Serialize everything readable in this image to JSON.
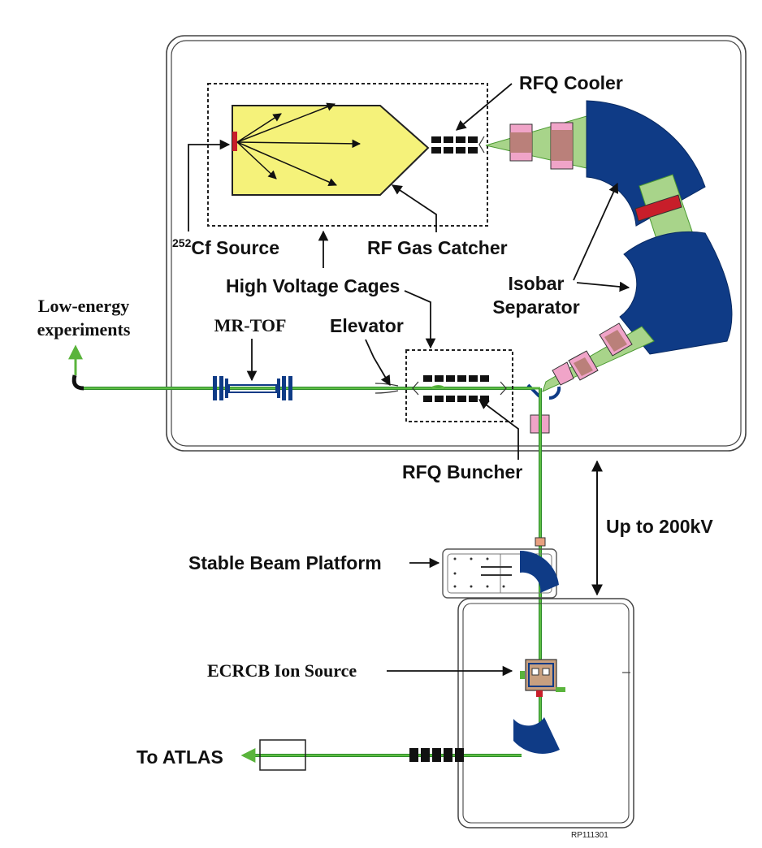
{
  "labels": {
    "rfq_cooler": "RFQ Cooler",
    "cf_sup": "252",
    "cf_source": "Cf Source",
    "rf_gas_catcher": "RF Gas Catcher",
    "high_voltage_cages": "High Voltage Cages",
    "isobar": "Isobar",
    "separator": "Separator",
    "low_energy": "Low-energy",
    "experiments": "experiments",
    "mr_tof": "MR-TOF",
    "elevator": "Elevator",
    "rfq_buncher": "RFQ Buncher",
    "up_to": "Up to 200kV",
    "stable_beam_platform": "Stable Beam Platform",
    "ecrcb": "ECRCB Ion Source",
    "to_atlas": "To ATLAS",
    "figure_id": "RP111301"
  },
  "colors": {
    "beam": "#5ab43c",
    "beam_cone": "#a8d48a",
    "magnet": "#0f3b86",
    "catcher": "#f5f27a",
    "rfq": "#111111",
    "quad": "#f0a4c8",
    "quad_overlap": "#b07a6c",
    "source_marker": "#c81e2a",
    "cage_border": "#333333",
    "platform_border": "#555555"
  }
}
